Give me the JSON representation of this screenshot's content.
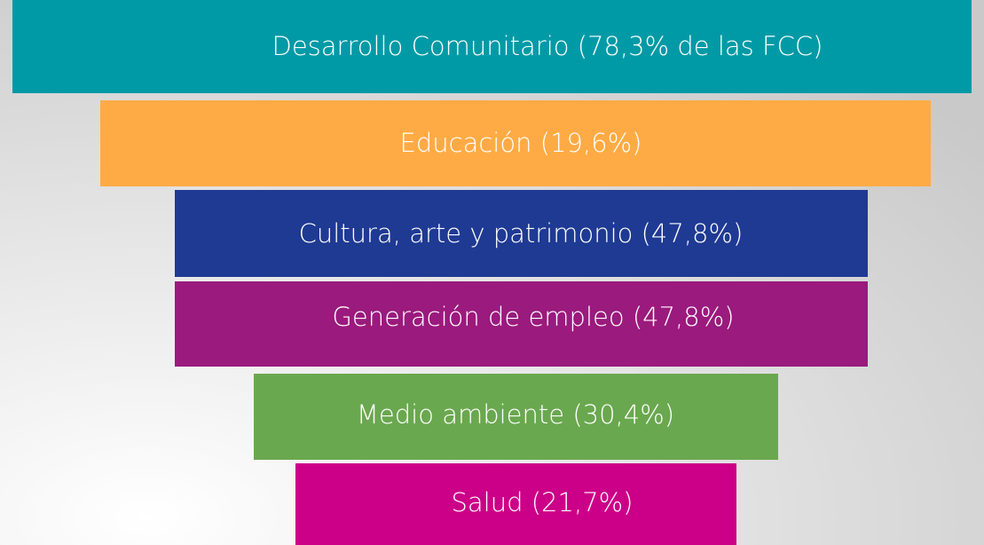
{
  "items": [
    {
      "label": "Desarrollo Comunitario (78,3% de las FCC)"
    },
    {
      "label": "Educación (19,6%)"
    },
    {
      "label": "Cultura, arte y patrimonio (47,8%)"
    },
    {
      "label": "Generación de empleo (47,8%)"
    },
    {
      "label": "Medio ambiente (30,4%)"
    },
    {
      "label": "Salud (21,7%)"
    }
  ]
}
